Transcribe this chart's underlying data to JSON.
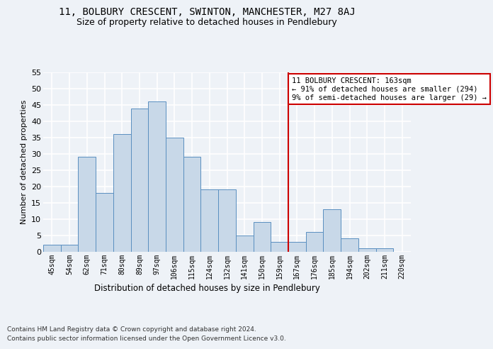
{
  "title_line1": "11, BOLBURY CRESCENT, SWINTON, MANCHESTER, M27 8AJ",
  "title_line2": "Size of property relative to detached houses in Pendlebury",
  "xlabel": "Distribution of detached houses by size in Pendlebury",
  "ylabel": "Number of detached properties",
  "categories": [
    "45sqm",
    "54sqm",
    "62sqm",
    "71sqm",
    "80sqm",
    "89sqm",
    "97sqm",
    "106sqm",
    "115sqm",
    "124sqm",
    "132sqm",
    "141sqm",
    "150sqm",
    "159sqm",
    "167sqm",
    "176sqm",
    "185sqm",
    "194sqm",
    "202sqm",
    "211sqm",
    "220sqm"
  ],
  "values": [
    2,
    2,
    29,
    18,
    36,
    44,
    46,
    35,
    29,
    19,
    19,
    5,
    9,
    3,
    3,
    6,
    13,
    4,
    1,
    1,
    0
  ],
  "bar_color": "#c8d8e8",
  "bar_edge_color": "#5a8fc0",
  "vline_color": "#cc0000",
  "annotation_text": "11 BOLBURY CRESCENT: 163sqm\n← 91% of detached houses are smaller (294)\n9% of semi-detached houses are larger (29) →",
  "annotation_box_color": "#ffffff",
  "annotation_box_edge": "#cc0000",
  "ylim": [
    0,
    55
  ],
  "yticks": [
    0,
    5,
    10,
    15,
    20,
    25,
    30,
    35,
    40,
    45,
    50,
    55
  ],
  "footer_line1": "Contains HM Land Registry data © Crown copyright and database right 2024.",
  "footer_line2": "Contains public sector information licensed under the Open Government Licence v3.0.",
  "background_color": "#eef2f7",
  "plot_bg_color": "#eef2f7",
  "grid_color": "#ffffff",
  "title_fontsize": 10,
  "subtitle_fontsize": 9,
  "bar_width": 1.0
}
